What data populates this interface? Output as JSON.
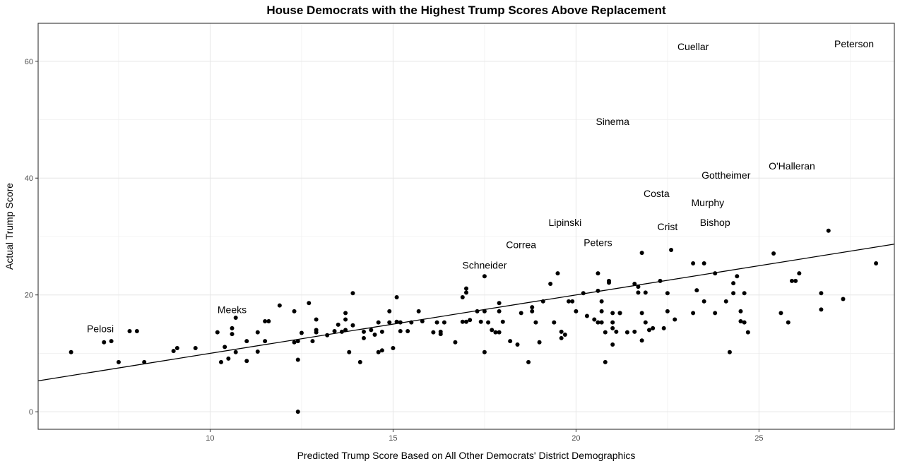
{
  "chart_data": {
    "type": "scatter",
    "title": "House Democrats with the Highest Trump Scores Above Replacement",
    "xlabel": "Predicted Trump Score Based on All Other Democrats' District Demographics",
    "ylabel": "Actual Trump Score",
    "xlim": [
      5.3,
      28.7
    ],
    "ylim": [
      -3,
      66.5
    ],
    "x_ticks": [
      10,
      15,
      20,
      25
    ],
    "x_tick_labels": [
      "10",
      "15",
      "20",
      "25"
    ],
    "y_ticks": [
      0,
      20,
      40,
      60
    ],
    "y_tick_labels": [
      "0",
      "20",
      "40",
      "60"
    ],
    "grid": true,
    "theme": "bw",
    "point_color": "#000000",
    "fit_line": {
      "slope": 1.0,
      "intercept": 0.0,
      "color": "#000000"
    },
    "labeled_points": [
      {
        "name": "Peterson",
        "x": 27.6,
        "y": 63
      },
      {
        "name": "Cuellar",
        "x": 23.2,
        "y": 62.5
      },
      {
        "name": "Sinema",
        "x": 21.0,
        "y": 49.7
      },
      {
        "name": "O'Halleran",
        "x": 25.9,
        "y": 42.1
      },
      {
        "name": "Gottheimer",
        "x": 24.1,
        "y": 40.5
      },
      {
        "name": "Costa",
        "x": 22.2,
        "y": 37.4
      },
      {
        "name": "Murphy",
        "x": 23.6,
        "y": 35.8
      },
      {
        "name": "Bishop",
        "x": 23.8,
        "y": 32.4
      },
      {
        "name": "Crist",
        "x": 22.5,
        "y": 31.7
      },
      {
        "name": "Lipinski",
        "x": 19.7,
        "y": 32.4
      },
      {
        "name": "Peters",
        "x": 20.6,
        "y": 29.0
      },
      {
        "name": "Correa",
        "x": 18.5,
        "y": 28.6
      },
      {
        "name": "Schneider",
        "x": 17.5,
        "y": 25.1
      },
      {
        "name": "Meeks",
        "x": 10.6,
        "y": 17.5
      },
      {
        "name": "Pelosi",
        "x": 7.0,
        "y": 14.2
      }
    ],
    "points": [
      [
        6.2,
        10.2
      ],
      [
        7.1,
        11.9
      ],
      [
        7.3,
        12.1
      ],
      [
        7.5,
        8.5
      ],
      [
        7.8,
        13.8
      ],
      [
        8.0,
        13.8
      ],
      [
        8.2,
        8.5
      ],
      [
        9.0,
        10.4
      ],
      [
        9.1,
        10.9
      ],
      [
        9.6,
        10.9
      ],
      [
        10.2,
        13.6
      ],
      [
        10.3,
        8.5
      ],
      [
        10.4,
        11.1
      ],
      [
        10.5,
        9.1
      ],
      [
        10.6,
        13.3
      ],
      [
        10.6,
        14.3
      ],
      [
        10.7,
        16.1
      ],
      [
        10.7,
        10.2
      ],
      [
        11.0,
        8.7
      ],
      [
        11.0,
        12.1
      ],
      [
        11.3,
        13.6
      ],
      [
        11.3,
        10.3
      ],
      [
        11.5,
        12.1
      ],
      [
        11.5,
        15.5
      ],
      [
        11.6,
        15.5
      ],
      [
        11.9,
        18.2
      ],
      [
        12.3,
        17.2
      ],
      [
        12.3,
        11.9
      ],
      [
        12.4,
        12.1
      ],
      [
        12.4,
        8.9
      ],
      [
        12.4,
        0.0
      ],
      [
        12.5,
        13.5
      ],
      [
        12.7,
        18.6
      ],
      [
        12.8,
        12.1
      ],
      [
        12.9,
        13.6
      ],
      [
        12.9,
        14.0
      ],
      [
        12.9,
        15.8
      ],
      [
        13.2,
        13.1
      ],
      [
        13.4,
        13.8
      ],
      [
        13.5,
        14.9
      ],
      [
        13.6,
        13.7
      ],
      [
        13.7,
        14.0
      ],
      [
        13.7,
        16.9
      ],
      [
        13.7,
        15.8
      ],
      [
        13.8,
        10.2
      ],
      [
        13.9,
        14.8
      ],
      [
        13.9,
        20.3
      ],
      [
        14.1,
        8.5
      ],
      [
        14.2,
        12.6
      ],
      [
        14.2,
        13.7
      ],
      [
        14.4,
        14.0
      ],
      [
        14.5,
        13.2
      ],
      [
        14.6,
        10.2
      ],
      [
        14.6,
        15.3
      ],
      [
        14.7,
        10.5
      ],
      [
        14.7,
        13.7
      ],
      [
        14.9,
        15.3
      ],
      [
        14.9,
        17.2
      ],
      [
        15.0,
        10.9
      ],
      [
        15.1,
        19.6
      ],
      [
        15.1,
        15.4
      ],
      [
        15.2,
        15.3
      ],
      [
        15.2,
        13.8
      ],
      [
        15.4,
        13.8
      ],
      [
        15.5,
        15.3
      ],
      [
        15.7,
        17.2
      ],
      [
        15.8,
        15.5
      ],
      [
        16.1,
        13.6
      ],
      [
        16.2,
        15.3
      ],
      [
        16.3,
        13.7
      ],
      [
        16.3,
        13.3
      ],
      [
        16.4,
        15.3
      ],
      [
        16.7,
        11.9
      ],
      [
        16.9,
        19.6
      ],
      [
        17.0,
        20.4
      ],
      [
        17.0,
        21.1
      ],
      [
        16.9,
        15.4
      ],
      [
        17.0,
        15.4
      ],
      [
        17.1,
        15.7
      ],
      [
        17.3,
        17.2
      ],
      [
        17.4,
        15.4
      ],
      [
        17.5,
        23.2
      ],
      [
        17.5,
        17.2
      ],
      [
        17.5,
        10.2
      ],
      [
        17.6,
        15.3
      ],
      [
        17.7,
        14.0
      ],
      [
        17.8,
        13.6
      ],
      [
        17.9,
        18.6
      ],
      [
        17.9,
        17.2
      ],
      [
        17.9,
        13.6
      ],
      [
        18.0,
        15.4
      ],
      [
        18.2,
        12.1
      ],
      [
        18.4,
        11.5
      ],
      [
        18.5,
        16.9
      ],
      [
        18.7,
        8.5
      ],
      [
        18.8,
        17.2
      ],
      [
        18.8,
        17.9
      ],
      [
        18.9,
        15.3
      ],
      [
        19.0,
        11.9
      ],
      [
        19.1,
        18.9
      ],
      [
        19.3,
        21.9
      ],
      [
        19.4,
        15.3
      ],
      [
        19.5,
        23.7
      ],
      [
        19.6,
        12.6
      ],
      [
        19.6,
        13.7
      ],
      [
        19.7,
        13.2
      ],
      [
        19.8,
        18.9
      ],
      [
        19.9,
        18.9
      ],
      [
        20.0,
        17.2
      ],
      [
        20.2,
        20.3
      ],
      [
        20.3,
        16.4
      ],
      [
        20.5,
        15.8
      ],
      [
        20.6,
        15.3
      ],
      [
        20.6,
        20.7
      ],
      [
        20.6,
        23.7
      ],
      [
        20.7,
        18.9
      ],
      [
        20.7,
        17.2
      ],
      [
        20.7,
        15.3
      ],
      [
        20.8,
        13.6
      ],
      [
        20.8,
        8.5
      ],
      [
        20.9,
        22.4
      ],
      [
        20.9,
        22.1
      ],
      [
        21.0,
        14.3
      ],
      [
        21.0,
        16.9
      ],
      [
        21.0,
        11.5
      ],
      [
        21.0,
        15.3
      ],
      [
        21.1,
        13.7
      ],
      [
        21.2,
        16.9
      ],
      [
        21.2,
        16.9
      ],
      [
        21.4,
        13.6
      ],
      [
        21.6,
        21.9
      ],
      [
        21.6,
        13.7
      ],
      [
        21.7,
        21.4
      ],
      [
        21.7,
        20.4
      ],
      [
        21.8,
        12.2
      ],
      [
        21.8,
        16.9
      ],
      [
        21.8,
        27.2
      ],
      [
        21.9,
        20.4
      ],
      [
        21.9,
        15.3
      ],
      [
        22.0,
        14.0
      ],
      [
        22.1,
        14.3
      ],
      [
        22.3,
        22.4
      ],
      [
        22.4,
        14.3
      ],
      [
        22.5,
        17.2
      ],
      [
        22.5,
        20.3
      ],
      [
        22.6,
        27.7
      ],
      [
        22.7,
        15.8
      ],
      [
        23.2,
        25.4
      ],
      [
        23.2,
        16.9
      ],
      [
        23.3,
        20.8
      ],
      [
        23.5,
        25.4
      ],
      [
        23.5,
        18.9
      ],
      [
        23.8,
        23.7
      ],
      [
        23.8,
        16.9
      ],
      [
        24.1,
        18.9
      ],
      [
        24.2,
        10.2
      ],
      [
        24.3,
        20.3
      ],
      [
        24.3,
        22.0
      ],
      [
        24.4,
        23.2
      ],
      [
        24.5,
        17.2
      ],
      [
        24.5,
        15.5
      ],
      [
        24.6,
        20.3
      ],
      [
        24.6,
        15.3
      ],
      [
        24.7,
        13.6
      ],
      [
        25.4,
        27.1
      ],
      [
        25.6,
        16.9
      ],
      [
        25.8,
        15.3
      ],
      [
        25.9,
        22.4
      ],
      [
        26.0,
        22.4
      ],
      [
        26.1,
        23.7
      ],
      [
        26.9,
        31.0
      ],
      [
        26.7,
        20.3
      ],
      [
        26.7,
        17.5
      ],
      [
        27.3,
        19.3
      ],
      [
        28.2,
        25.4
      ]
    ]
  }
}
